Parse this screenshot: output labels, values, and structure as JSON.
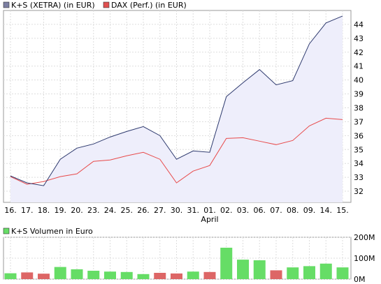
{
  "chart_data": [
    {
      "type": "line",
      "legend": [
        {
          "label": "K+S (XETRA) (in EUR)",
          "color": "#7c7fa2"
        },
        {
          "label": "DAX (Perf.) (in EUR)",
          "color": "#e05050"
        }
      ],
      "categories": [
        "16.",
        "17.",
        "18.",
        "19.",
        "20.",
        "23.",
        "24.",
        "25.",
        "26.",
        "27.",
        "30.",
        "31.",
        "01.",
        "02.",
        "03.",
        "06.",
        "07.",
        "08.",
        "09.",
        "14.",
        "15."
      ],
      "month_label": "April",
      "series": [
        {
          "name": "K+S (XETRA) (in EUR)",
          "color": "#2e3a6e",
          "fill": "#eeeefb",
          "values": [
            33.1,
            32.6,
            32.4,
            34.3,
            35.1,
            35.4,
            35.9,
            36.3,
            36.65,
            36.0,
            34.3,
            34.9,
            34.8,
            38.8,
            39.8,
            40.75,
            39.65,
            39.95,
            42.6,
            44.1,
            44.6
          ]
        },
        {
          "name": "DAX (Perf.) (in EUR)",
          "color": "#e84a4a",
          "values": [
            33.05,
            32.5,
            32.7,
            33.05,
            33.25,
            34.15,
            34.25,
            34.55,
            34.8,
            34.3,
            32.6,
            33.45,
            33.85,
            35.8,
            35.85,
            35.6,
            35.35,
            35.65,
            36.7,
            37.25,
            37.15
          ]
        }
      ],
      "y_ticks": [
        32,
        33,
        34,
        35,
        36,
        37,
        38,
        39,
        40,
        41,
        42,
        43,
        44
      ],
      "ylim": [
        31.2,
        45.0
      ],
      "grid": true
    },
    {
      "type": "bar",
      "legend": [
        {
          "label": "K+S Volumen in Euro",
          "color": "#66dd66"
        }
      ],
      "categories": [
        "16.",
        "17.",
        "18.",
        "19.",
        "20.",
        "23.",
        "24.",
        "25.",
        "26.",
        "27.",
        "30.",
        "31.",
        "01.",
        "02.",
        "03.",
        "06.",
        "07.",
        "08.",
        "09.",
        "14.",
        "15."
      ],
      "values": [
        28,
        32,
        26,
        58,
        47,
        40,
        36,
        34,
        24,
        30,
        27,
        36,
        34,
        150,
        93,
        90,
        42,
        56,
        62,
        74,
        56
      ],
      "colors": [
        "#66dd66",
        "#dd6666",
        "#dd6666",
        "#66dd66",
        "#66dd66",
        "#66dd66",
        "#66dd66",
        "#66dd66",
        "#66dd66",
        "#dd6666",
        "#dd6666",
        "#66dd66",
        "#dd6666",
        "#66dd66",
        "#66dd66",
        "#66dd66",
        "#dd6666",
        "#66dd66",
        "#66dd66",
        "#66dd66",
        "#66dd66"
      ],
      "value_unit": "M",
      "y_ticks": [
        "0M",
        "100M",
        "200M"
      ],
      "ylim": [
        0,
        200
      ],
      "grid": true
    }
  ]
}
